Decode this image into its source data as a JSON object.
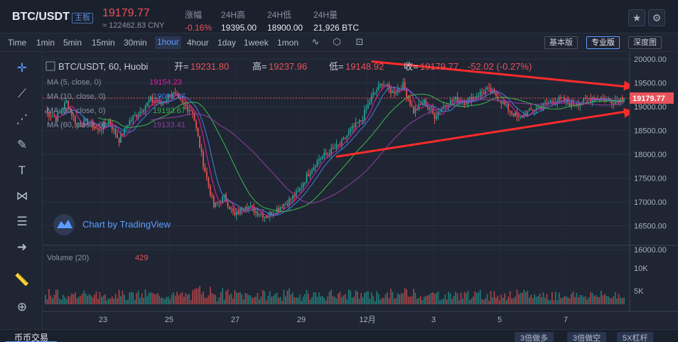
{
  "header": {
    "pair": "BTC/USDT",
    "pair_tag": "主板",
    "last_price": "19179.77",
    "cny": "≈ 122462.83 CNY",
    "change_label": "涨幅",
    "change_value": "-0.16%",
    "high_label": "24H高",
    "high_value": "19395.00",
    "low_label": "24H低",
    "low_value": "18900.00",
    "vol_label": "24H量",
    "vol_value": "21,926 BTC",
    "icons": [
      "star-icon",
      "settings-icon"
    ]
  },
  "toolbar": {
    "timeframes": [
      "Time",
      "1min",
      "5min",
      "15min",
      "30min",
      "1hour",
      "4hour",
      "1day",
      "1week",
      "1mon"
    ],
    "active": "1hour",
    "icons": [
      "indicator-icon",
      "settings-icon",
      "screenshot-icon"
    ],
    "views": [
      "基本版",
      "专业版",
      "深度图"
    ],
    "active_view": "专业版"
  },
  "sidebar": {
    "tools": [
      "crosshair-icon",
      "trend-line-icon",
      "fib-icon",
      "brush-icon",
      "text-icon",
      "pattern-icon",
      "measure-icon",
      "back-arrow-icon",
      "ruler-icon",
      "zoom-icon"
    ]
  },
  "legend": {
    "title": "BTC/USDT, 60, Huobi",
    "open_label": "开=",
    "open": "19231.80",
    "high_label": "高=",
    "high": "19237.96",
    "low_label": "低=",
    "low": "19148.92",
    "close_label": "收=",
    "close": "19179.77",
    "change": "-52.02 (-0.27%)",
    "ma": [
      {
        "label": "MA (5, close, 0)",
        "value": "19154.23",
        "color": "#d6219f"
      },
      {
        "label": "MA (10, close, 0)",
        "value": "19061.87",
        "color": "#3f7bd6"
      },
      {
        "label": "MA (30, close, 0)",
        "value": "19193.67",
        "color": "#37b24d"
      },
      {
        "label": "MA (60, close, 0)",
        "value": "19133.41",
        "color": "#8e3c9e"
      }
    ],
    "volume_label": "Volume (20)",
    "volume_value": "429",
    "watermark": "Chart by TradingView"
  },
  "chart_data": {
    "type": "candlestick",
    "ylim": [
      16000,
      20000
    ],
    "y_ticks": [
      "20000.00",
      "19500.00",
      "19000.00",
      "18500.00",
      "18000.00",
      "17500.00",
      "17000.00",
      "16500.00",
      "16000.00"
    ],
    "current_price_label": "19179.77",
    "x_ticks": [
      "23",
      "25",
      "27",
      "29",
      "12月",
      "3",
      "5",
      "7"
    ],
    "volume_ticks": [
      "10K",
      "5K"
    ],
    "close_path": [
      [
        0,
        18900
      ],
      [
        6,
        18750
      ],
      [
        12,
        19100
      ],
      [
        18,
        18600
      ],
      [
        24,
        18700
      ],
      [
        30,
        18500
      ],
      [
        36,
        18700
      ],
      [
        42,
        18300
      ],
      [
        48,
        18700
      ],
      [
        54,
        18900
      ],
      [
        60,
        19150
      ],
      [
        66,
        19050
      ],
      [
        72,
        19300
      ],
      [
        78,
        19050
      ],
      [
        84,
        18900
      ],
      [
        90,
        17800
      ],
      [
        96,
        16900
      ],
      [
        102,
        17100
      ],
      [
        108,
        16700
      ],
      [
        114,
        16950
      ],
      [
        120,
        16800
      ],
      [
        126,
        16700
      ],
      [
        132,
        16850
      ],
      [
        138,
        17000
      ],
      [
        144,
        17200
      ],
      [
        150,
        17600
      ],
      [
        156,
        17900
      ],
      [
        162,
        18050
      ],
      [
        168,
        18200
      ],
      [
        174,
        18500
      ],
      [
        180,
        18700
      ],
      [
        186,
        19200
      ],
      [
        192,
        19500
      ],
      [
        198,
        19300
      ],
      [
        204,
        19450
      ],
      [
        210,
        18900
      ],
      [
        216,
        19100
      ],
      [
        222,
        18800
      ],
      [
        228,
        19050
      ],
      [
        234,
        19150
      ],
      [
        240,
        19100
      ],
      [
        246,
        19250
      ],
      [
        252,
        19350
      ],
      [
        258,
        19200
      ],
      [
        264,
        18950
      ],
      [
        270,
        18750
      ],
      [
        276,
        18900
      ],
      [
        282,
        19000
      ],
      [
        288,
        19100
      ],
      [
        294,
        19150
      ],
      [
        300,
        19050
      ],
      [
        306,
        19100
      ],
      [
        312,
        19200
      ],
      [
        318,
        19150
      ],
      [
        324,
        19120
      ],
      [
        330,
        19179.77
      ]
    ],
    "ma_series": [
      {
        "name": "MA (5, close, 0)",
        "color": "#d6219f"
      },
      {
        "name": "MA (10, close, 0)",
        "color": "#3f7bd6"
      },
      {
        "name": "MA (30, close, 0)",
        "color": "#37b24d"
      },
      {
        "name": "MA (60, close, 0)",
        "color": "#8e3c9e"
      }
    ],
    "annotations": [
      {
        "type": "trendline",
        "from": [
          0.56,
          19950
        ],
        "to": [
          1.0,
          19420
        ],
        "color": "#ff2b2b"
      },
      {
        "type": "trendline",
        "from": [
          0.5,
          17950
        ],
        "to": [
          1.0,
          18900
        ],
        "color": "#ff2b2b"
      }
    ],
    "colors": {
      "up": "#26a69a",
      "down": "#ef5350"
    }
  },
  "bottom": {
    "tab": "币币交易",
    "buttons": [
      "3倍做多",
      "3倍做空",
      "5X杠杆"
    ]
  }
}
